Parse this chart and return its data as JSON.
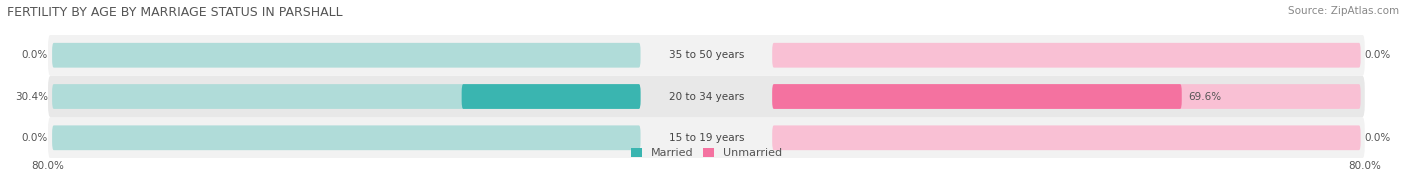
{
  "title": "FERTILITY BY AGE BY MARRIAGE STATUS IN PARSHALL",
  "source": "Source: ZipAtlas.com",
  "rows": [
    {
      "label": "15 to 19 years",
      "married": 0.0,
      "unmarried": 0.0
    },
    {
      "label": "20 to 34 years",
      "married": 30.4,
      "unmarried": 69.6
    },
    {
      "label": "35 to 50 years",
      "married": 0.0,
      "unmarried": 0.0
    }
  ],
  "x_max": 80.0,
  "married_color": "#3ab5b0",
  "married_light_color": "#b0dcd9",
  "unmarried_color": "#f472a0",
  "unmarried_light_color": "#f9c0d4",
  "row_bg_colors": [
    "#f2f2f2",
    "#e8e8e8",
    "#f2f2f2"
  ],
  "title_fontsize": 9,
  "label_fontsize": 7.5,
  "tick_fontsize": 7.5,
  "legend_fontsize": 8
}
